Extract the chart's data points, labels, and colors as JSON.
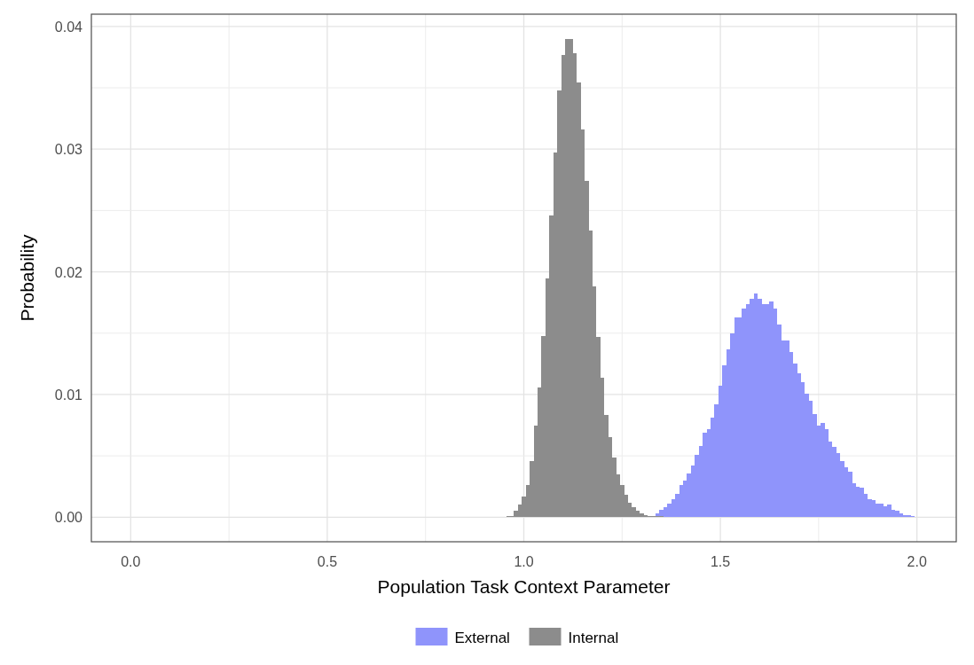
{
  "chart_data": {
    "type": "histogram",
    "xlabel": "Population Task Context Parameter",
    "ylabel": "Probability",
    "xlim": [
      -0.1,
      2.1
    ],
    "ylim": [
      -0.002,
      0.041
    ],
    "xticks": [
      {
        "value": 0,
        "label": "0.0"
      },
      {
        "value": 0.25,
        "label": null
      },
      0.5,
      {
        "value": 0.75,
        "label": null
      },
      {
        "value": 1,
        "label": "1.0"
      },
      {
        "value": 1.25,
        "label": null
      },
      1.5,
      {
        "value": 1.75,
        "label": null
      },
      {
        "value": 2,
        "label": "2.0"
      }
    ],
    "yticks": [
      {
        "value": 0,
        "label": "0.00"
      },
      {
        "value": 0.005,
        "label": null
      },
      {
        "value": 0.01,
        "label": "0.01"
      },
      {
        "value": 0.015,
        "label": null
      },
      {
        "value": 0.02,
        "label": "0.02"
      },
      {
        "value": 0.025,
        "label": null
      },
      {
        "value": 0.03,
        "label": "0.03"
      },
      {
        "value": 0.035,
        "label": null
      },
      {
        "value": 0.04,
        "label": "0.04"
      }
    ],
    "grid": true,
    "legend": "bottom",
    "bins": [
      0.955,
      0.965,
      0.975,
      0.985,
      0.995,
      1.005,
      1.015,
      1.025,
      1.035,
      1.045,
      1.055,
      1.065,
      1.075,
      1.085,
      1.095,
      1.105,
      1.115,
      1.125,
      1.135,
      1.145,
      1.155,
      1.165,
      1.175,
      1.185,
      1.195,
      1.205,
      1.215,
      1.225,
      1.235,
      1.245,
      1.255,
      1.265,
      1.275,
      1.285,
      1.295,
      1.305,
      1.315,
      1.325,
      1.335,
      1.345,
      1.355,
      1.365,
      1.375,
      1.385,
      1.395,
      1.405,
      1.415,
      1.425,
      1.435,
      1.445,
      1.455,
      1.465,
      1.475,
      1.485,
      1.495,
      1.505,
      1.515,
      1.525,
      1.535,
      1.545,
      1.555,
      1.565,
      1.575,
      1.585,
      1.595,
      1.605,
      1.615,
      1.625,
      1.635,
      1.645,
      1.655,
      1.665,
      1.675,
      1.685,
      1.695,
      1.705,
      1.715,
      1.725,
      1.735,
      1.745,
      1.755,
      1.765,
      1.775,
      1.785,
      1.795,
      1.805,
      1.815,
      1.825,
      1.835,
      1.845,
      1.855,
      1.865,
      1.875,
      1.885,
      1.895,
      1.905,
      1.915,
      1.925,
      1.935,
      1.945,
      1.955,
      1.965,
      1.975,
      1.985,
      1.995
    ],
    "series": [
      {
        "name": "External",
        "color": "#8f94fb",
        "values": [
          null,
          null,
          null,
          null,
          null,
          null,
          null,
          null,
          null,
          null,
          null,
          null,
          null,
          null,
          null,
          null,
          null,
          null,
          null,
          null,
          null,
          null,
          null,
          null,
          null,
          null,
          null,
          null,
          null,
          null,
          null,
          null,
          null,
          null,
          null,
          null,
          null,
          null,
          0.0003,
          0.0006,
          0.0008,
          0.0011,
          0.0015,
          0.0019,
          0.0026,
          0.003,
          0.0036,
          0.0042,
          0.0051,
          0.0058,
          0.0069,
          0.0072,
          0.0081,
          0.0092,
          0.0107,
          0.0124,
          0.0137,
          0.015,
          0.0163,
          0.0163,
          0.017,
          0.0174,
          0.0178,
          0.0182,
          0.0178,
          0.0174,
          0.0174,
          0.0176,
          0.017,
          0.0157,
          0.0144,
          0.0144,
          0.0135,
          0.0125,
          0.0117,
          0.011,
          0.0101,
          0.0095,
          0.0084,
          0.0075,
          0.0077,
          0.0072,
          0.0062,
          0.0057,
          0.0052,
          0.0046,
          0.0041,
          0.0037,
          0.0028,
          0.0025,
          0.0024,
          0.0019,
          0.0015,
          0.0014,
          0.0011,
          0.0011,
          0.0009,
          0.001,
          0.0006,
          0.0005,
          0.0003,
          0.0002,
          0.0002,
          0.0001
        ]
      },
      {
        "name": "Internal",
        "color": "#8c8c8c",
        "values": [
          0.0001,
          0.0001,
          0.0005,
          0.001,
          0.0017,
          0.0026,
          0.0046,
          0.0075,
          0.0106,
          0.0148,
          0.0195,
          0.0246,
          0.0297,
          0.0348,
          0.0377,
          0.039,
          0.039,
          0.0378,
          0.0354,
          0.0316,
          0.0274,
          0.0234,
          0.0188,
          0.0147,
          0.0114,
          0.0083,
          0.0065,
          0.0049,
          0.0035,
          0.0026,
          0.0018,
          0.0012,
          0.0008,
          0.0005,
          0.0003,
          0.0002,
          0.0001,
          0.0001,
          0.0001,
          0.0001,
          null,
          null,
          null,
          null,
          null,
          null,
          null,
          null,
          null,
          null,
          null,
          null,
          null,
          null,
          null,
          null,
          null,
          null,
          null,
          null,
          null,
          null,
          null,
          null,
          null,
          null,
          null,
          null,
          null,
          null,
          null,
          null,
          null,
          null,
          null,
          null,
          null,
          null,
          null,
          null,
          null,
          null,
          null,
          null,
          null,
          null,
          null,
          null,
          null,
          null,
          null,
          null,
          null,
          null,
          null,
          null,
          null,
          null,
          null,
          null,
          null,
          null,
          null,
          null
        ]
      }
    ]
  }
}
